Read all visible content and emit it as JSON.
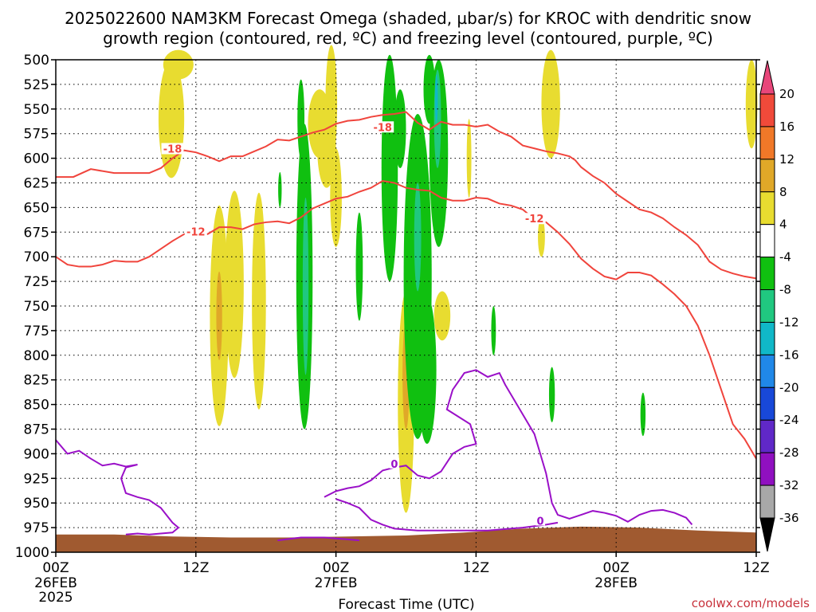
{
  "chart_data": {
    "type": "heatmap",
    "title_line1": "2025022600 NAM3KM Forecast Omega (shaded, µbar/s) for KROC with dendritic snow",
    "title_line2": "growth region (contoured, red, ºC) and freezing level (contoured, purple, ºC)",
    "xlabel": "Forecast Time (UTC)",
    "credit": "coolwx.com/models",
    "y_ticks": [
      500,
      525,
      550,
      575,
      600,
      625,
      650,
      675,
      700,
      725,
      750,
      775,
      800,
      825,
      850,
      875,
      900,
      925,
      950,
      975,
      1000
    ],
    "y_range": [
      500,
      1000
    ],
    "x_range_hours": [
      0,
      60
    ],
    "x_ticks": [
      {
        "hour": 0,
        "label": "00Z",
        "sub": "26FEB",
        "sub2": "2025"
      },
      {
        "hour": 12,
        "label": "12Z",
        "sub": "",
        "sub2": ""
      },
      {
        "hour": 24,
        "label": "00Z",
        "sub": "27FEB",
        "sub2": ""
      },
      {
        "hour": 36,
        "label": "12Z",
        "sub": "",
        "sub2": ""
      },
      {
        "hour": 48,
        "label": "00Z",
        "sub": "28FEB",
        "sub2": ""
      },
      {
        "hour": 60,
        "label": "12Z",
        "sub": "",
        "sub2": ""
      }
    ],
    "grid": true,
    "colorbar": {
      "labels": [
        "20",
        "16",
        "12",
        "8",
        "4",
        "-4",
        "-8",
        "-12",
        "-16",
        "-20",
        "-24",
        "-28",
        "-32",
        "-36"
      ],
      "colors": [
        "#e8467a",
        "#f04a3a",
        "#f07828",
        "#e0a828",
        "#e8dc30",
        "#ffffff",
        "#10c010",
        "#20c880",
        "#10b8c8",
        "#2088e8",
        "#1848d8",
        "#6028c8",
        "#9010c0",
        "#a8a8a8",
        "#000000"
      ]
    },
    "contours": [
      {
        "name": "-18",
        "color": "#f0443c",
        "points": [
          [
            0,
            619
          ],
          [
            1.5,
            619
          ],
          [
            3,
            611
          ],
          [
            5,
            615
          ],
          [
            7,
            615
          ],
          [
            8,
            615
          ],
          [
            9,
            610
          ],
          [
            10,
            600
          ],
          [
            11,
            592
          ],
          [
            12,
            594
          ],
          [
            13,
            598
          ],
          [
            14,
            603
          ],
          [
            15,
            598
          ],
          [
            16,
            598
          ],
          [
            17,
            593
          ],
          [
            18,
            588
          ],
          [
            19,
            581
          ],
          [
            20,
            582
          ],
          [
            21,
            578
          ],
          [
            22,
            574
          ],
          [
            23,
            571
          ],
          [
            24,
            565
          ],
          [
            25,
            562
          ],
          [
            26,
            561
          ],
          [
            27,
            558
          ],
          [
            28,
            556
          ],
          [
            29,
            555
          ],
          [
            30,
            553
          ],
          [
            31,
            564
          ],
          [
            32,
            571
          ],
          [
            33,
            563
          ],
          [
            34,
            566
          ],
          [
            35,
            566
          ],
          [
            36,
            568
          ],
          [
            37,
            566
          ],
          [
            38,
            573
          ],
          [
            39,
            578
          ],
          [
            40,
            587
          ],
          [
            41,
            590
          ],
          [
            42,
            593
          ],
          [
            43,
            595
          ],
          [
            44,
            598
          ],
          [
            44.5,
            602
          ],
          [
            45,
            609
          ],
          [
            46,
            618
          ],
          [
            47,
            625
          ],
          [
            48,
            636
          ],
          [
            49,
            644
          ],
          [
            50,
            652
          ],
          [
            51,
            655
          ],
          [
            52,
            661
          ],
          [
            53,
            670
          ],
          [
            54,
            678
          ],
          [
            55,
            688
          ],
          [
            56,
            705
          ],
          [
            57,
            713
          ],
          [
            58,
            717
          ],
          [
            59,
            720
          ],
          [
            60,
            722
          ]
        ],
        "label_pos": [
          10,
          591
        ]
      },
      {
        "name": "-12",
        "color": "#f0443c",
        "points": [
          [
            0,
            700
          ],
          [
            1,
            708
          ],
          [
            2,
            710
          ],
          [
            3,
            710
          ],
          [
            4,
            708
          ],
          [
            5,
            704
          ],
          [
            6,
            705
          ],
          [
            7,
            705
          ],
          [
            8,
            700
          ],
          [
            9,
            692
          ],
          [
            10,
            684
          ],
          [
            11,
            677
          ],
          [
            12,
            675
          ],
          [
            13,
            677
          ],
          [
            14,
            670
          ],
          [
            15,
            670
          ],
          [
            16,
            672
          ],
          [
            17,
            667
          ],
          [
            18,
            665
          ],
          [
            19,
            664
          ],
          [
            20,
            666
          ],
          [
            21,
            660
          ],
          [
            22,
            651
          ],
          [
            23,
            646
          ],
          [
            24,
            641
          ],
          [
            25,
            639
          ],
          [
            26,
            634
          ],
          [
            27,
            630
          ],
          [
            28,
            623
          ],
          [
            29,
            625
          ],
          [
            30,
            630
          ],
          [
            31,
            632
          ],
          [
            32,
            633
          ],
          [
            33,
            640
          ],
          [
            34,
            643
          ],
          [
            35,
            643
          ],
          [
            36,
            640
          ],
          [
            37,
            641
          ],
          [
            38,
            646
          ],
          [
            39,
            648
          ],
          [
            40,
            652
          ],
          [
            41,
            662
          ],
          [
            42,
            665
          ],
          [
            43,
            675
          ],
          [
            44,
            687
          ],
          [
            45,
            702
          ],
          [
            46,
            712
          ],
          [
            47,
            720
          ],
          [
            48,
            723
          ],
          [
            49,
            716
          ],
          [
            50,
            716
          ],
          [
            51,
            719
          ],
          [
            52,
            728
          ],
          [
            53,
            738
          ],
          [
            54,
            750
          ],
          [
            55,
            770
          ],
          [
            56,
            800
          ],
          [
            57,
            835
          ],
          [
            58,
            870
          ],
          [
            59,
            885
          ],
          [
            60,
            905
          ]
        ],
        "label_pos": [
          12,
          675
        ]
      }
    ],
    "contour_labels": [
      {
        "text": "-18",
        "hour": 10,
        "pressure": 591
      },
      {
        "text": "-18",
        "hour": 28,
        "pressure": 569
      },
      {
        "text": "-12",
        "hour": 12,
        "pressure": 675
      },
      {
        "text": "-12",
        "hour": 41,
        "pressure": 662
      }
    ],
    "freezing_levels": [
      {
        "name": "0",
        "color": "#9a10c8",
        "points": [
          [
            0,
            886
          ],
          [
            1,
            900
          ],
          [
            2,
            897
          ],
          [
            3,
            905
          ],
          [
            4,
            912
          ],
          [
            5,
            910
          ],
          [
            6,
            913
          ],
          [
            7,
            911
          ],
          [
            6,
            914
          ],
          [
            5.6,
            925
          ],
          [
            6,
            940
          ],
          [
            7,
            944
          ],
          [
            8,
            947
          ],
          [
            9,
            955
          ],
          [
            10,
            970
          ],
          [
            10.5,
            975
          ],
          [
            10,
            980
          ],
          [
            9,
            981
          ],
          [
            8,
            982
          ],
          [
            7,
            981
          ],
          [
            6,
            982
          ]
        ]
      },
      {
        "name": "0",
        "color": "#9a10c8",
        "points": [
          [
            23,
            944
          ],
          [
            24,
            938
          ],
          [
            25,
            935
          ],
          [
            26,
            933
          ],
          [
            27,
            927
          ],
          [
            28,
            917
          ],
          [
            29,
            914
          ],
          [
            30,
            912
          ],
          [
            31,
            922
          ],
          [
            32,
            925
          ],
          [
            33,
            918
          ],
          [
            34,
            900
          ],
          [
            35,
            893
          ],
          [
            36,
            890
          ],
          [
            35.5,
            870
          ],
          [
            33.5,
            855
          ],
          [
            34,
            835
          ],
          [
            35,
            818
          ],
          [
            36,
            815
          ],
          [
            37,
            822
          ],
          [
            38,
            818
          ],
          [
            38.5,
            830
          ],
          [
            40,
            860
          ],
          [
            41,
            880
          ],
          [
            41.5,
            900
          ],
          [
            42,
            920
          ],
          [
            42.5,
            950
          ],
          [
            43,
            962
          ],
          [
            44,
            966
          ],
          [
            45,
            962
          ],
          [
            46,
            958
          ],
          [
            47,
            960
          ],
          [
            48,
            963
          ],
          [
            49,
            969
          ],
          [
            50,
            962
          ],
          [
            51,
            958
          ],
          [
            52,
            957
          ],
          [
            53,
            960
          ],
          [
            54,
            965
          ],
          [
            54.5,
            972
          ]
        ]
      },
      {
        "name": "0",
        "color": "#9a10c8",
        "points": [
          [
            24,
            946
          ],
          [
            25,
            950
          ],
          [
            26,
            955
          ],
          [
            27,
            967
          ],
          [
            28,
            972
          ],
          [
            29,
            976
          ],
          [
            31,
            978
          ],
          [
            34,
            978
          ],
          [
            37,
            978
          ],
          [
            40,
            975
          ],
          [
            42,
            972
          ],
          [
            43,
            970
          ]
        ]
      },
      {
        "name": "0",
        "color": "#9a10c8",
        "points": [
          [
            19,
            988
          ],
          [
            21,
            985
          ],
          [
            23,
            985
          ],
          [
            25,
            987
          ],
          [
            26,
            988
          ]
        ]
      }
    ],
    "freezing_label": {
      "text": "0",
      "hour": 29,
      "pressure": 910
    },
    "freezing_label2": {
      "text": "0",
      "hour": 41.5,
      "pressure": 968
    },
    "omega_blobs": [
      {
        "value": 4,
        "color": "#e8dc30",
        "cx": 9.9,
        "cy": 560,
        "rx": 1.1,
        "ry": 60
      },
      {
        "value": 4,
        "color": "#e8dc30",
        "cx": 10.5,
        "cy": 505,
        "rx": 1.3,
        "ry": 15
      },
      {
        "value": 4,
        "color": "#e8dc30",
        "cx": 14.0,
        "cy": 760,
        "rx": 0.8,
        "ry": 112
      },
      {
        "value": 4,
        "color": "#e8dc30",
        "cx": 15.3,
        "cy": 728,
        "rx": 0.8,
        "ry": 95
      },
      {
        "value": 4,
        "color": "#e8dc30",
        "cx": 17.4,
        "cy": 745,
        "rx": 0.6,
        "ry": 110
      },
      {
        "value": 4,
        "color": "#e8dc30",
        "cx": 22.6,
        "cy": 565,
        "rx": 1.0,
        "ry": 35
      },
      {
        "value": 4,
        "color": "#e8dc30",
        "cx": 23.2,
        "cy": 590,
        "rx": 0.8,
        "ry": 40
      },
      {
        "value": 4,
        "color": "#e8dc30",
        "cx": 23.6,
        "cy": 545,
        "rx": 0.5,
        "ry": 60
      },
      {
        "value": 4,
        "color": "#e8dc30",
        "cx": 24.0,
        "cy": 640,
        "rx": 0.5,
        "ry": 50
      },
      {
        "value": 4,
        "color": "#e8dc30",
        "cx": 30.0,
        "cy": 848,
        "rx": 0.7,
        "ry": 112
      },
      {
        "value": 4,
        "color": "#e8dc30",
        "cx": 33.1,
        "cy": 760,
        "rx": 0.7,
        "ry": 25
      },
      {
        "value": 4,
        "color": "#e8dc30",
        "cx": 42.4,
        "cy": 545,
        "rx": 0.8,
        "ry": 55
      },
      {
        "value": 4,
        "color": "#e8dc30",
        "cx": 41.6,
        "cy": 680,
        "rx": 0.3,
        "ry": 20
      },
      {
        "value": 4,
        "color": "#e8dc30",
        "cx": 59.6,
        "cy": 545,
        "rx": 0.5,
        "ry": 45
      },
      {
        "value": 4,
        "color": "#e8dc30",
        "cx": 32.5,
        "cy": 600,
        "rx": 0.4,
        "ry": 40
      },
      {
        "value": 4,
        "color": "#e8dc30",
        "cx": 35.4,
        "cy": 600,
        "rx": 0.2,
        "ry": 40
      },
      {
        "value": 8,
        "color": "#e0a828",
        "cx": 14.0,
        "cy": 760,
        "rx": 0.25,
        "ry": 45
      },
      {
        "value": 8,
        "color": "#e0a828",
        "cx": 30.0,
        "cy": 820,
        "rx": 0.3,
        "ry": 55
      },
      {
        "value": -4,
        "color": "#10c010",
        "cx": 21.3,
        "cy": 720,
        "rx": 0.7,
        "ry": 155
      },
      {
        "value": -4,
        "color": "#10c010",
        "cx": 21.0,
        "cy": 560,
        "rx": 0.3,
        "ry": 40
      },
      {
        "value": -4,
        "color": "#10c010",
        "cx": 19.2,
        "cy": 632,
        "rx": 0.15,
        "ry": 18
      },
      {
        "value": -4,
        "color": "#10c010",
        "cx": 26.0,
        "cy": 710,
        "rx": 0.3,
        "ry": 55
      },
      {
        "value": -4,
        "color": "#10c010",
        "cx": 28.6,
        "cy": 610,
        "rx": 0.7,
        "ry": 115
      },
      {
        "value": -4,
        "color": "#10c010",
        "cx": 29.5,
        "cy": 570,
        "rx": 0.5,
        "ry": 40
      },
      {
        "value": -4,
        "color": "#10c010",
        "cx": 31.0,
        "cy": 720,
        "rx": 1.2,
        "ry": 165
      },
      {
        "value": -4,
        "color": "#10c010",
        "cx": 31.8,
        "cy": 815,
        "rx": 0.8,
        "ry": 75
      },
      {
        "value": -4,
        "color": "#10c010",
        "cx": 32.8,
        "cy": 595,
        "rx": 0.8,
        "ry": 95
      },
      {
        "value": -4,
        "color": "#10c010",
        "cx": 32.0,
        "cy": 530,
        "rx": 0.5,
        "ry": 35
      },
      {
        "value": -4,
        "color": "#10c010",
        "cx": 37.5,
        "cy": 775,
        "rx": 0.2,
        "ry": 25
      },
      {
        "value": -4,
        "color": "#10c010",
        "cx": 42.5,
        "cy": 840,
        "rx": 0.25,
        "ry": 28
      },
      {
        "value": -4,
        "color": "#10c010",
        "cx": 50.3,
        "cy": 860,
        "rx": 0.22,
        "ry": 22
      },
      {
        "value": -8,
        "color": "#20c880",
        "cx": 21.4,
        "cy": 730,
        "rx": 0.25,
        "ry": 90
      },
      {
        "value": -8,
        "color": "#20c880",
        "cx": 31.0,
        "cy": 680,
        "rx": 0.3,
        "ry": 55
      },
      {
        "value": -8,
        "color": "#20c880",
        "cx": 32.7,
        "cy": 560,
        "rx": 0.3,
        "ry": 50
      },
      {
        "value": -12,
        "color": "#10b8c8",
        "cx": 32.6,
        "cy": 540,
        "rx": 0.12,
        "ry": 25
      }
    ],
    "terrain": {
      "color": "#a05a30"
    }
  }
}
